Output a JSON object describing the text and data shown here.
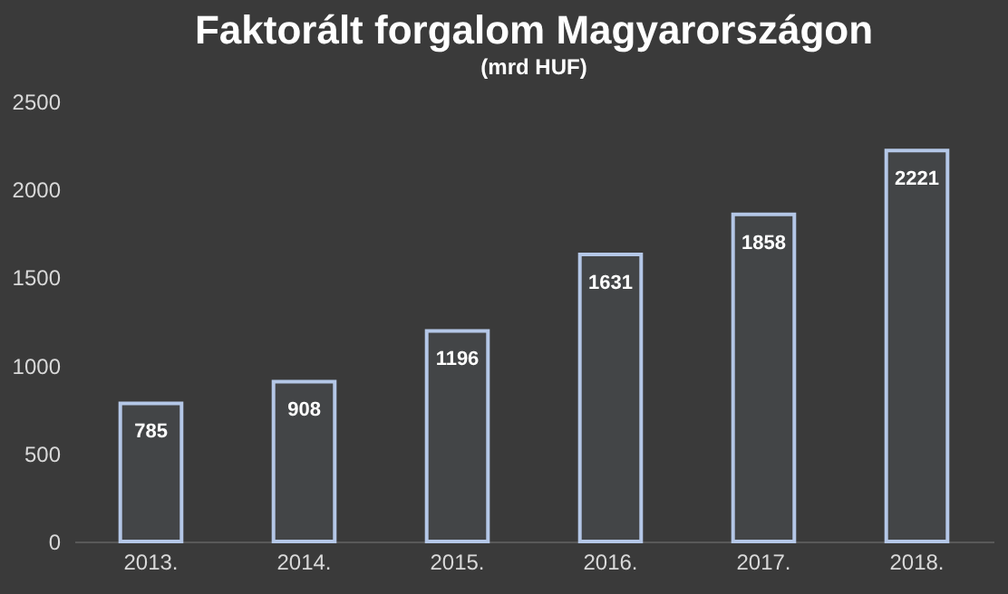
{
  "chart_data": {
    "type": "bar",
    "title": "Faktorált forgalom Magyarországon",
    "subtitle": "(mrd HUF)",
    "categories": [
      "2013.",
      "2014.",
      "2015.",
      "2016.",
      "2017.",
      "2018."
    ],
    "values": [
      785,
      908,
      1196,
      1631,
      1858,
      2221
    ],
    "color": "#b4c7e7",
    "ylim": [
      0,
      2500
    ],
    "yticks": [
      0,
      500,
      1000,
      1500,
      2000,
      2500
    ],
    "grid": false,
    "data_labels": true
  }
}
